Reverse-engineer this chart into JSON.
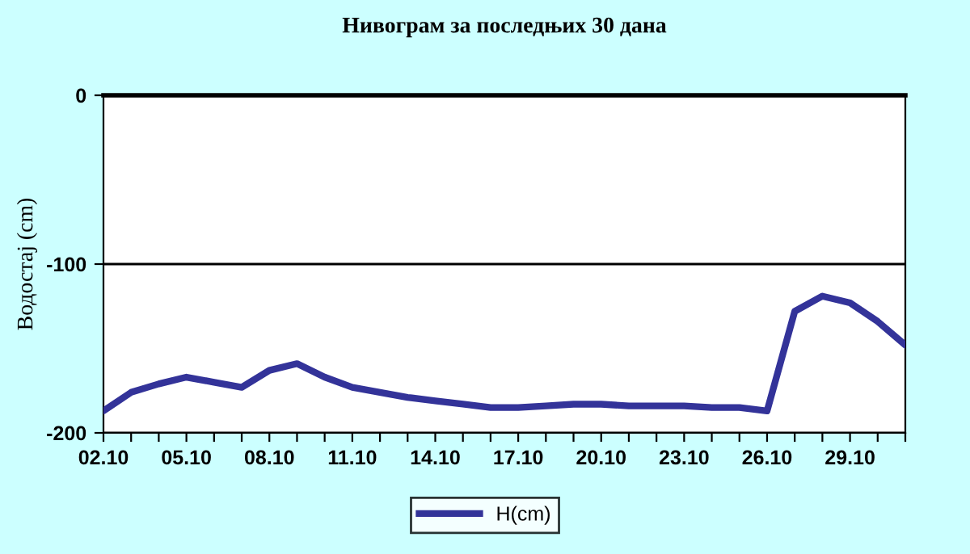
{
  "chart_data": {
    "type": "line",
    "title": "Нивограм за последњих 30 дана",
    "ylabel": "Водостај (cm)",
    "categories": [
      "02.10",
      null,
      null,
      "05.10",
      null,
      null,
      "08.10",
      null,
      null,
      "11.10",
      null,
      null,
      "14.10",
      null,
      null,
      "17.10",
      null,
      null,
      "20.10",
      null,
      null,
      "23.10",
      null,
      null,
      "26.10",
      null,
      null,
      "29.10",
      null,
      null
    ],
    "series": [
      {
        "name": "H(cm)",
        "color": "#333399",
        "values": [
          -187,
          -176,
          -171,
          -167,
          -170,
          -173,
          -163,
          -159,
          -167,
          -173,
          -176,
          -179,
          -181,
          -183,
          -185,
          -185,
          -184,
          -183,
          -183,
          -184,
          -184,
          -184,
          -185,
          -185,
          -187,
          -128,
          -119,
          -123,
          -134,
          -148
        ]
      }
    ],
    "ylim": [
      -200,
      0
    ],
    "yticks": [
      -200,
      -100,
      0
    ],
    "grid": "y",
    "legend": "bottom",
    "marker": "none",
    "line_style": "solid"
  }
}
